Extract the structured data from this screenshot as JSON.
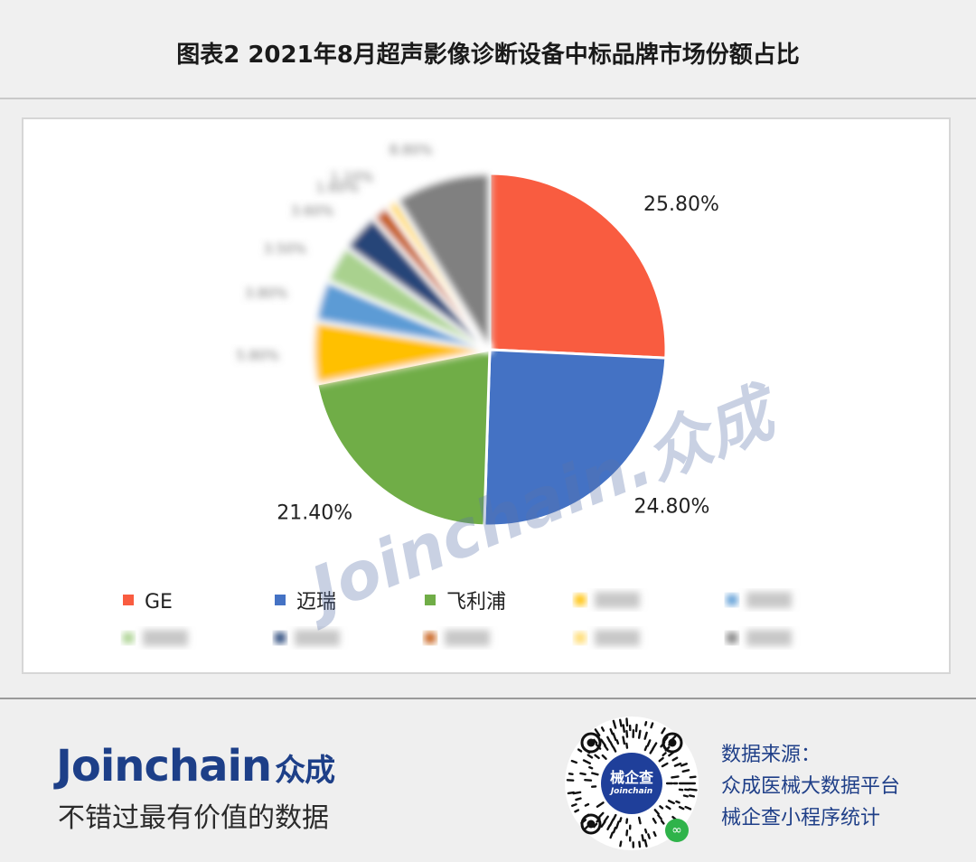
{
  "header": {
    "title": "图表2  2021年8月超声影像诊断设备中标品牌市场份额占比"
  },
  "chart_data": {
    "type": "pie",
    "title": "图表2  2021年8月超声影像诊断设备中标品牌市场份额占比",
    "slices": [
      {
        "name": "GE",
        "value": 25.8,
        "label": "25.80%",
        "color": "#f95c40",
        "blurred": false
      },
      {
        "name": "迈瑞",
        "value": 24.8,
        "label": "24.80%",
        "color": "#4472c4",
        "blurred": false
      },
      {
        "name": "飞利浦",
        "value": 21.4,
        "label": "21.40%",
        "color": "#70ad47",
        "blurred": false
      },
      {
        "name": "",
        "value": 5.8,
        "label": "5.80%",
        "color": "#ffc000",
        "blurred": true
      },
      {
        "name": "",
        "value": 3.8,
        "label": "3.80%",
        "color": "#5b9bd5",
        "blurred": true
      },
      {
        "name": "",
        "value": 3.5,
        "label": "3.50%",
        "color": "#a9d18e",
        "blurred": true
      },
      {
        "name": "",
        "value": 3.6,
        "label": "3.60%",
        "color": "#264478",
        "blurred": true
      },
      {
        "name": "",
        "value": 1.6,
        "label": "1.60%",
        "color": "#c55a11",
        "blurred": true
      },
      {
        "name": "",
        "value": 1.1,
        "label": "1.10%",
        "color": "#ffd966",
        "blurred": true
      },
      {
        "name": "",
        "value": 8.8,
        "label": "8.80%",
        "color": "#808080",
        "blurred": true
      }
    ],
    "legend_position": "bottom"
  },
  "watermark": {
    "text": "Joinchain.众成"
  },
  "footer": {
    "brand": "Joinchain",
    "brand_cn": "众成",
    "slogan": "不错过最有价值的数据",
    "qr_center_line1": "械企查",
    "qr_center_line2": "Joinchain",
    "source_lines": [
      "数据来源：",
      "众成医械大数据平台",
      "械企查小程序统计"
    ]
  }
}
